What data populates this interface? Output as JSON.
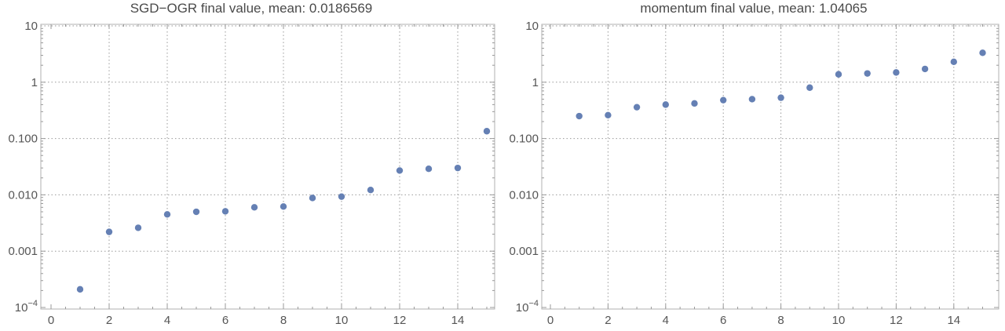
{
  "chart_data": [
    {
      "type": "scatter",
      "title": "SGD−OGR final value, mean: 0.0186569",
      "xlabel": "",
      "ylabel": "",
      "yscale": "log",
      "xlim": [
        0,
        15.3
      ],
      "ylim": [
        0.0001,
        10
      ],
      "grid": true,
      "x_ticks": [
        "0",
        "2",
        "4",
        "6",
        "8",
        "10",
        "12",
        "14"
      ],
      "y_ticks": [
        "10",
        "1",
        "0.100",
        "0.010",
        "0.001",
        "10⁻⁴"
      ],
      "point_color": "#6580b4",
      "x": [
        1,
        2,
        3,
        4,
        5,
        6,
        7,
        8,
        9,
        10,
        11,
        12,
        13,
        14,
        15
      ],
      "y": [
        0.00021,
        0.0022,
        0.0026,
        0.0045,
        0.005,
        0.0051,
        0.006,
        0.0062,
        0.0088,
        0.0093,
        0.0122,
        0.027,
        0.029,
        0.03,
        0.135
      ]
    },
    {
      "type": "scatter",
      "title": "momentum final value, mean: 1.04065",
      "xlabel": "",
      "ylabel": "",
      "yscale": "log",
      "xlim": [
        0,
        15.3
      ],
      "ylim": [
        0.0001,
        10
      ],
      "grid": true,
      "x_ticks": [
        "0",
        "2",
        "4",
        "6",
        "8",
        "10",
        "12",
        "14"
      ],
      "y_ticks": [
        "10",
        "1",
        "0.100",
        "0.010",
        "0.001",
        "10⁻⁴"
      ],
      "point_color": "#6580b4",
      "x": [
        1,
        2,
        3,
        4,
        5,
        6,
        7,
        8,
        9,
        10,
        11,
        12,
        13,
        14,
        15
      ],
      "y": [
        0.25,
        0.26,
        0.36,
        0.4,
        0.42,
        0.48,
        0.5,
        0.53,
        0.8,
        1.38,
        1.43,
        1.49,
        1.72,
        2.3,
        3.33
      ]
    }
  ]
}
